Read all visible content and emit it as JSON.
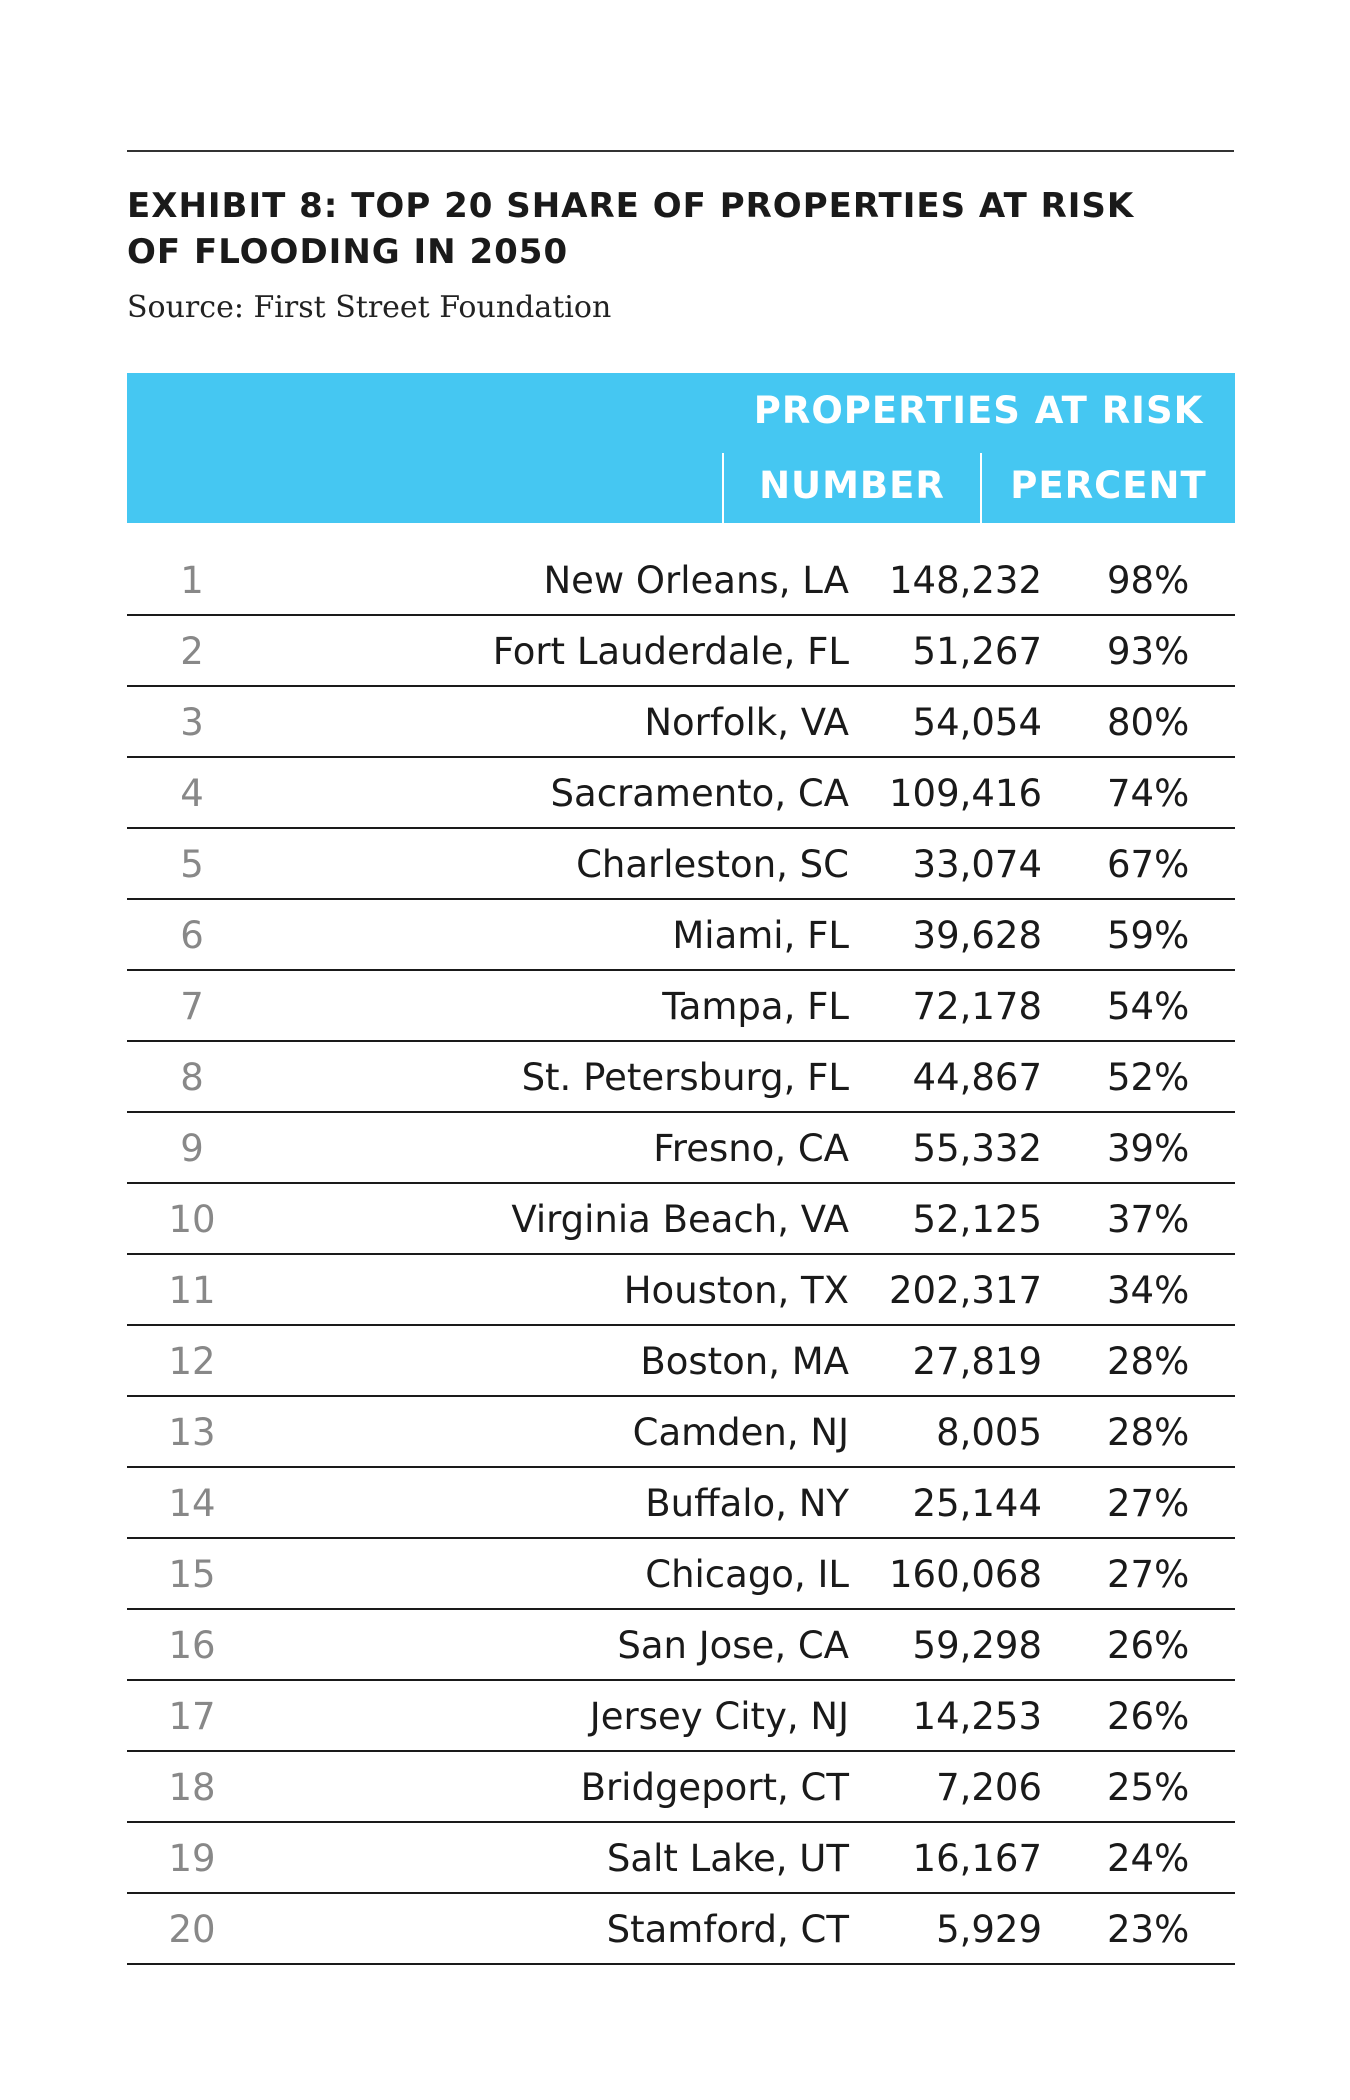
{
  "exhibit": {
    "title_line1": "EXHIBIT 8: TOP 20 SHARE OF PROPERTIES AT RISK",
    "title_line2": "OF FLOODING IN 2050",
    "source": "Source: First Street Foundation"
  },
  "table": {
    "group_header": "PROPERTIES AT RISK",
    "col_number": "NUMBER",
    "col_percent": "PERCENT",
    "rows": [
      {
        "rank": "1",
        "city": "New Orleans, LA",
        "number": "148,232",
        "percent": "98%"
      },
      {
        "rank": "2",
        "city": "Fort Lauderdale, FL",
        "number": "51,267",
        "percent": "93%"
      },
      {
        "rank": "3",
        "city": "Norfolk, VA",
        "number": "54,054",
        "percent": "80%"
      },
      {
        "rank": "4",
        "city": "Sacramento, CA",
        "number": "109,416",
        "percent": "74%"
      },
      {
        "rank": "5",
        "city": "Charleston, SC",
        "number": "33,074",
        "percent": "67%"
      },
      {
        "rank": "6",
        "city": "Miami, FL",
        "number": "39,628",
        "percent": "59%"
      },
      {
        "rank": "7",
        "city": "Tampa, FL",
        "number": "72,178",
        "percent": "54%"
      },
      {
        "rank": "8",
        "city": "St. Petersburg, FL",
        "number": "44,867",
        "percent": "52%"
      },
      {
        "rank": "9",
        "city": "Fresno, CA",
        "number": "55,332",
        "percent": "39%"
      },
      {
        "rank": "10",
        "city": "Virginia Beach, VA",
        "number": "52,125",
        "percent": "37%"
      },
      {
        "rank": "11",
        "city": "Houston, TX",
        "number": "202,317",
        "percent": "34%"
      },
      {
        "rank": "12",
        "city": "Boston, MA",
        "number": "27,819",
        "percent": "28%"
      },
      {
        "rank": "13",
        "city": "Camden, NJ",
        "number": "8,005",
        "percent": "28%"
      },
      {
        "rank": "14",
        "city": "Buffalo, NY",
        "number": "25,144",
        "percent": "27%"
      },
      {
        "rank": "15",
        "city": "Chicago, IL",
        "number": "160,068",
        "percent": "27%"
      },
      {
        "rank": "16",
        "city": "San Jose, CA",
        "number": "59,298",
        "percent": "26%"
      },
      {
        "rank": "17",
        "city": "Jersey City, NJ",
        "number": "14,253",
        "percent": "26%"
      },
      {
        "rank": "18",
        "city": "Bridgeport, CT",
        "number": "7,206",
        "percent": "25%"
      },
      {
        "rank": "19",
        "city": "Salt Lake, UT",
        "number": "16,167",
        "percent": "24%"
      },
      {
        "rank": "20",
        "city": "Stamford, CT",
        "number": "5,929",
        "percent": "23%"
      }
    ]
  },
  "colors": {
    "header_bg": "#45c7f2",
    "header_text": "#ffffff",
    "rank_text": "#888888",
    "body_text": "#1a1a1a"
  }
}
